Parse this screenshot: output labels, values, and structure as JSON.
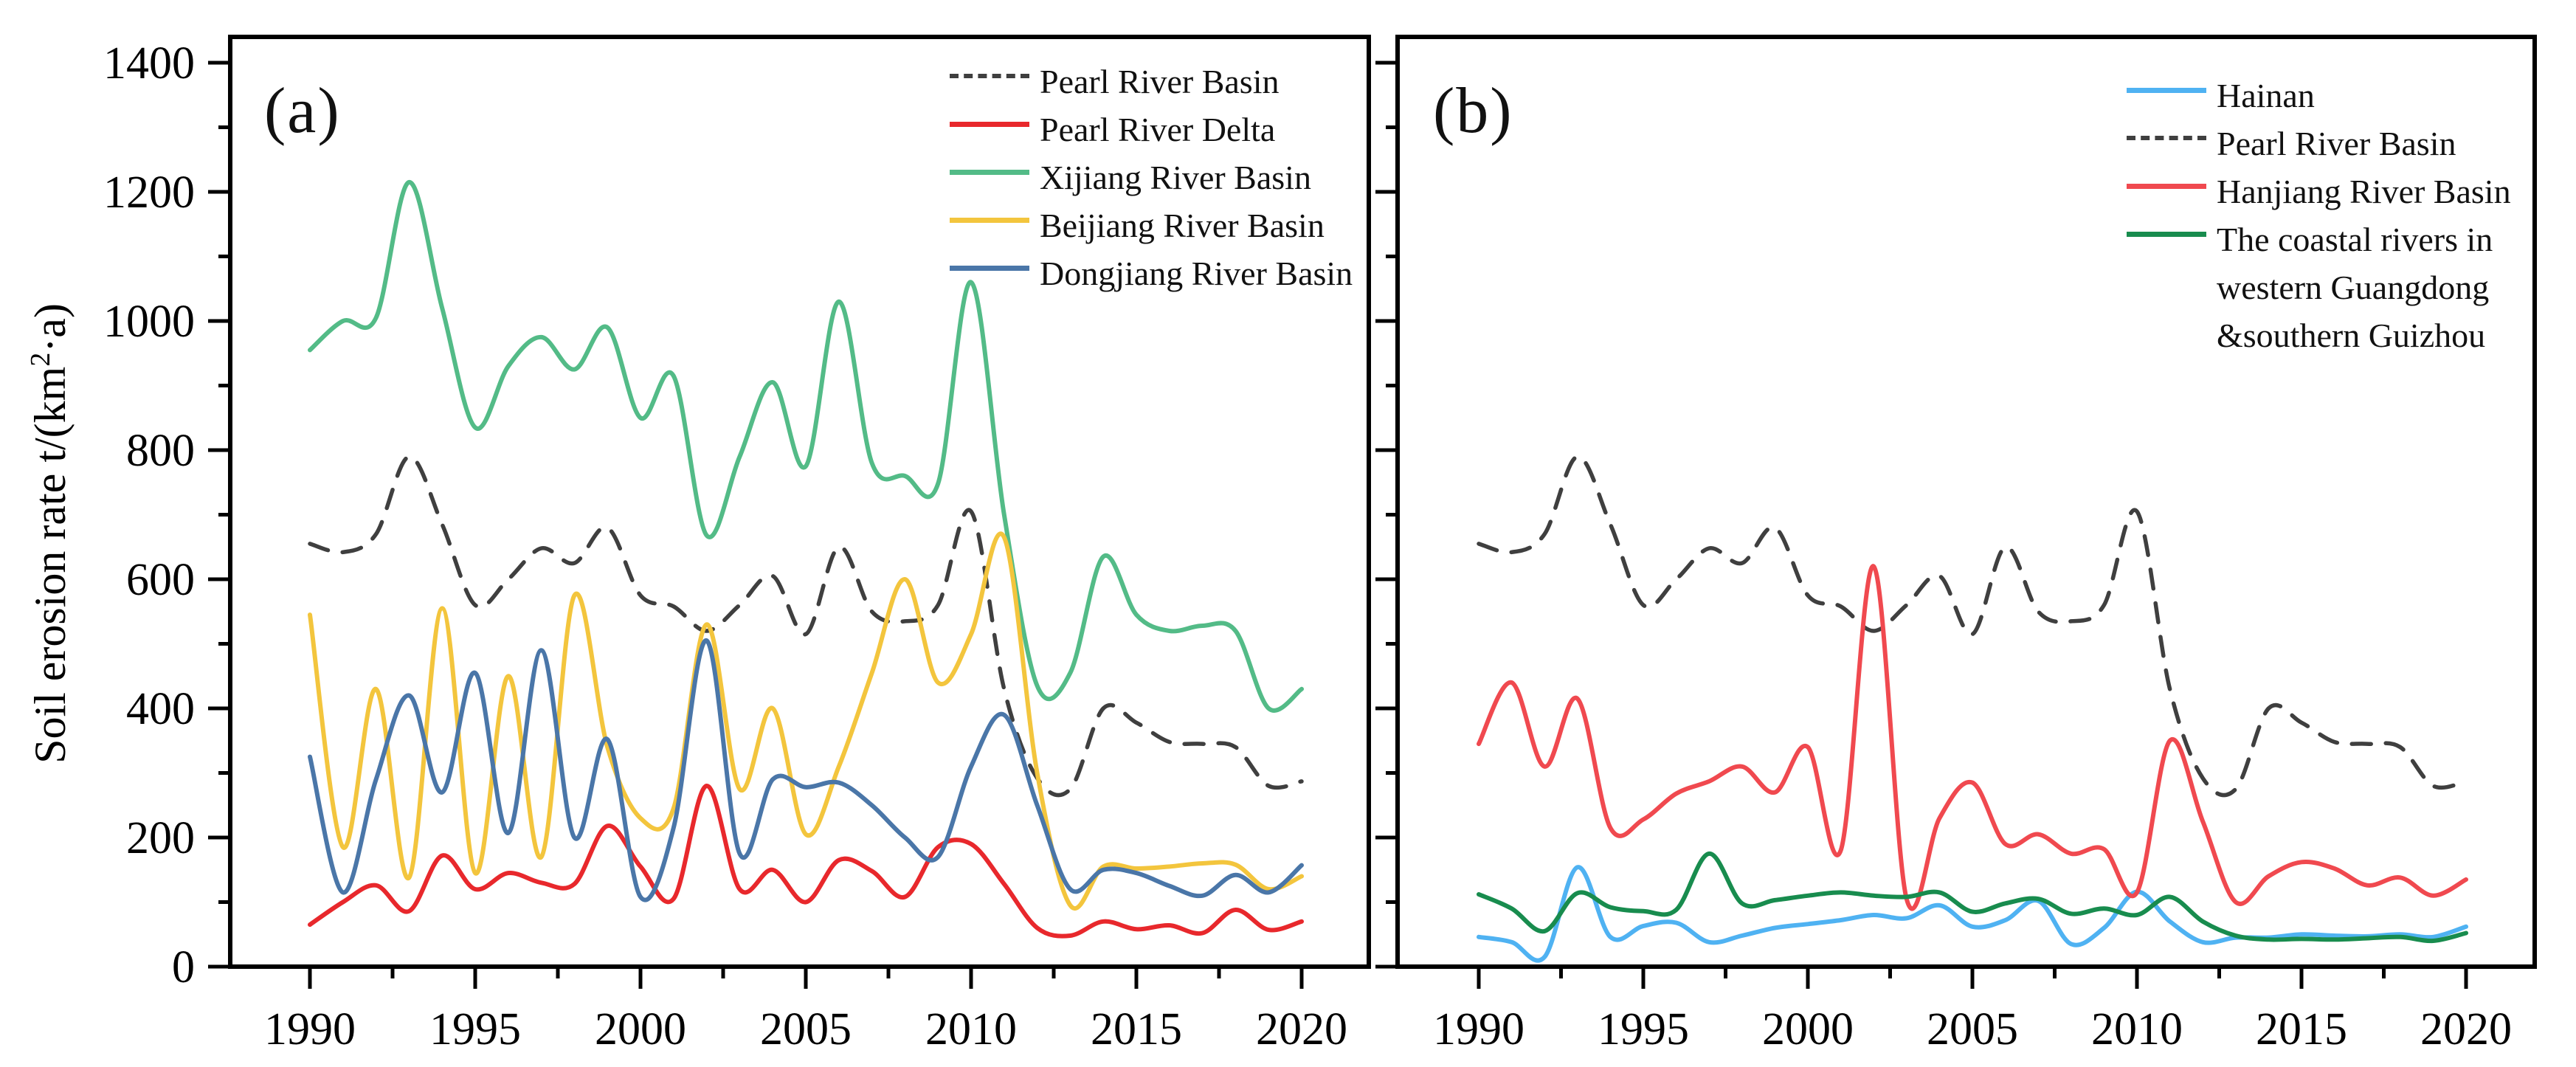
{
  "figure": {
    "panel_a_label": "(a)",
    "panel_b_label": "(b)",
    "ylabel_prefix": "Soil erosion rate  t/(km",
    "ylabel_sup": "2",
    "ylabel_suffix": "·a)"
  },
  "colors": {
    "pearl_river_basin": "#3f3f3f",
    "pearl_river_delta": "#e8282c",
    "xijiang": "#53bb87",
    "beijiang": "#f3c53d",
    "dongjiang": "#4a76a8",
    "hainan": "#4fb2f2",
    "hanjiang": "#f0494f",
    "coastal": "#188c4e",
    "axis": "#000000"
  },
  "chart_data": [
    {
      "type": "line",
      "panel_label": "(a)",
      "xlabel": "",
      "ylabel": "Soil erosion rate t/(km2·a)",
      "ylim": [
        0,
        1440
      ],
      "yticks": [
        0,
        200,
        400,
        600,
        800,
        1000,
        1200,
        1400
      ],
      "yticks_minor": [
        100,
        300,
        500,
        700,
        900,
        1100,
        1300
      ],
      "xticks": [
        1990,
        1995,
        2000,
        2005,
        2010,
        2015,
        2020
      ],
      "xticks_minor": [
        1992.5,
        1997.5,
        2002.5,
        2007.5,
        2012.5,
        2017.5
      ],
      "grid": false,
      "legend_position": "top-right-inside",
      "years": [
        1990,
        1991,
        1992,
        1993,
        1994,
        1995,
        1996,
        1997,
        1998,
        1999,
        2000,
        2001,
        2002,
        2003,
        2004,
        2005,
        2006,
        2007,
        2008,
        2009,
        2010,
        2011,
        2012,
        2013,
        2014,
        2015,
        2016,
        2017,
        2018,
        2019,
        2020
      ],
      "series": [
        {
          "name": "Pearl River Basin",
          "color_key": "pearl_river_basin",
          "style": "dashed",
          "values": [
            655,
            642,
            670,
            790,
            685,
            560,
            600,
            648,
            625,
            680,
            575,
            558,
            520,
            560,
            605,
            515,
            650,
            550,
            535,
            560,
            705,
            430,
            292,
            275,
            400,
            378,
            348,
            345,
            340,
            280,
            287
          ]
        },
        {
          "name": "Pearl River Delta",
          "color_key": "pearl_river_delta",
          "style": "solid",
          "values": [
            65,
            100,
            126,
            86,
            172,
            120,
            145,
            130,
            128,
            218,
            155,
            105,
            280,
            120,
            150,
            100,
            165,
            148,
            108,
            185,
            190,
            128,
            60,
            48,
            70,
            58,
            64,
            52,
            88,
            57,
            70
          ]
        },
        {
          "name": "Xijiang River Basin",
          "color_key": "xijiang",
          "style": "solid",
          "values": [
            955,
            1000,
            1005,
            1215,
            1020,
            835,
            930,
            975,
            925,
            990,
            850,
            915,
            668,
            790,
            905,
            775,
            1030,
            780,
            760,
            748,
            1060,
            700,
            435,
            455,
            635,
            545,
            520,
            528,
            520,
            400,
            430
          ]
        },
        {
          "name": "Beijiang River Basin",
          "color_key": "beijiang",
          "style": "solid",
          "values": [
            545,
            185,
            430,
            138,
            555,
            145,
            450,
            170,
            575,
            340,
            230,
            245,
            530,
            275,
            400,
            205,
            310,
            455,
            600,
            440,
            515,
            665,
            300,
            95,
            155,
            152,
            155,
            160,
            158,
            120,
            140
          ]
        },
        {
          "name": "Dongjiang River Basin",
          "color_key": "dongjiang",
          "style": "solid",
          "values": [
            325,
            115,
            290,
            420,
            270,
            455,
            207,
            490,
            200,
            352,
            108,
            215,
            505,
            175,
            290,
            278,
            285,
            250,
            200,
            170,
            310,
            390,
            250,
            120,
            150,
            145,
            125,
            110,
            142,
            115,
            157
          ]
        }
      ]
    },
    {
      "type": "line",
      "panel_label": "(b)",
      "xlabel": "",
      "ylabel": "Soil erosion rate t/(km2·a)",
      "ylim": [
        0,
        1440
      ],
      "yticks": [
        0,
        200,
        400,
        600,
        800,
        1000,
        1200,
        1400
      ],
      "yticks_minor": [
        100,
        300,
        500,
        700,
        900,
        1100,
        1300
      ],
      "xticks": [
        1990,
        1995,
        2000,
        2005,
        2010,
        2015,
        2020
      ],
      "xticks_minor": [
        1992.5,
        1997.5,
        2002.5,
        2007.5,
        2012.5,
        2017.5
      ],
      "grid": false,
      "legend_position": "top-right-inside",
      "years": [
        1990,
        1991,
        1992,
        1993,
        1994,
        1995,
        1996,
        1997,
        1998,
        1999,
        2000,
        2001,
        2002,
        2003,
        2004,
        2005,
        2006,
        2007,
        2008,
        2009,
        2010,
        2011,
        2012,
        2013,
        2014,
        2015,
        2016,
        2017,
        2018,
        2019,
        2020
      ],
      "series": [
        {
          "name": "Hainan",
          "color_key": "hainan",
          "style": "solid",
          "values": [
            46,
            38,
            15,
            154,
            46,
            63,
            68,
            38,
            48,
            60,
            66,
            72,
            80,
            75,
            95,
            62,
            72,
            102,
            35,
            60,
            116,
            70,
            38,
            45,
            45,
            50,
            48,
            47,
            50,
            46,
            62
          ]
        },
        {
          "name": "Pearl River Basin",
          "color_key": "pearl_river_basin",
          "style": "dashed",
          "values": [
            655,
            642,
            670,
            790,
            685,
            560,
            600,
            648,
            625,
            680,
            575,
            558,
            520,
            560,
            605,
            515,
            650,
            550,
            535,
            560,
            705,
            430,
            292,
            275,
            400,
            378,
            348,
            345,
            340,
            280,
            287
          ]
        },
        {
          "name": "Hanjiang River Basin",
          "color_key": "hanjiang",
          "style": "solid",
          "values": [
            345,
            440,
            310,
            415,
            215,
            228,
            268,
            287,
            310,
            270,
            340,
            180,
            620,
            105,
            230,
            285,
            190,
            205,
            175,
            182,
            115,
            350,
            225,
            100,
            140,
            162,
            152,
            126,
            138,
            110,
            135
          ]
        },
        {
          "name": "The coastal rivers in western Guangdong &southern Guizhou",
          "color_key": "coastal",
          "style": "solid",
          "values": [
            112,
            90,
            55,
            114,
            92,
            86,
            88,
            175,
            98,
            103,
            110,
            115,
            110,
            108,
            115,
            85,
            98,
            105,
            82,
            90,
            80,
            108,
            70,
            48,
            42,
            43,
            42,
            44,
            46,
            40,
            52
          ]
        }
      ]
    }
  ]
}
